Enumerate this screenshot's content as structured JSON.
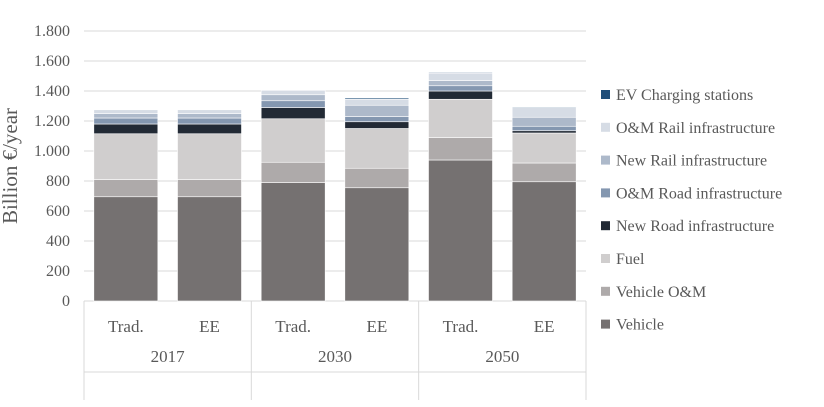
{
  "chart_data": {
    "type": "bar",
    "stacked": true,
    "title": "",
    "xlabel": "",
    "ylabel": "Billion €/year",
    "ylim": [
      0,
      1800
    ],
    "yticks": [
      {
        "value": 0,
        "label": "0"
      },
      {
        "value": 200,
        "label": "200"
      },
      {
        "value": 400,
        "label": "400"
      },
      {
        "value": 600,
        "label": "600"
      },
      {
        "value": 800,
        "label": "800"
      },
      {
        "value": 1000,
        "label": "1.000"
      },
      {
        "value": 1200,
        "label": "1.200"
      },
      {
        "value": 1400,
        "label": "1.400"
      },
      {
        "value": 1600,
        "label": "1.600"
      },
      {
        "value": 1800,
        "label": "1.800"
      }
    ],
    "grid": "horizontal",
    "legend_position": "right",
    "categories": [
      "Trad.",
      "EE",
      "Trad.",
      "EE",
      "Trad.",
      "EE"
    ],
    "groups": [
      {
        "label": "2017",
        "span": 2
      },
      {
        "label": "2030",
        "span": 2
      },
      {
        "label": "2050",
        "span": 2
      }
    ],
    "series": [
      {
        "name": "Vehicle",
        "color": "#757171",
        "values": [
          695,
          695,
          790,
          755,
          940,
          795
        ]
      },
      {
        "name": "Vehicle O&M",
        "color": "#aeaaaa",
        "values": [
          115,
          115,
          135,
          130,
          150,
          125
        ]
      },
      {
        "name": "Fuel",
        "color": "#d0cece",
        "values": [
          305,
          305,
          290,
          265,
          255,
          200
        ]
      },
      {
        "name": "New Road infrastructure",
        "color": "#222a35",
        "values": [
          65,
          65,
          75,
          45,
          55,
          15
        ]
      },
      {
        "name": "O&M Road infrastructure",
        "color": "#8497b0",
        "values": [
          40,
          40,
          45,
          35,
          35,
          30
        ]
      },
      {
        "name": "New Rail infrastructure",
        "color": "#adb9ca",
        "values": [
          30,
          30,
          40,
          75,
          35,
          60
        ]
      },
      {
        "name": "O&M Rail infrastructure",
        "color": "#d6dce5",
        "values": [
          25,
          25,
          30,
          40,
          50,
          65
        ]
      },
      {
        "name": "EV Charging stations",
        "color": "#1f4e79",
        "values": [
          0,
          0,
          3,
          8,
          5,
          5
        ]
      }
    ]
  }
}
